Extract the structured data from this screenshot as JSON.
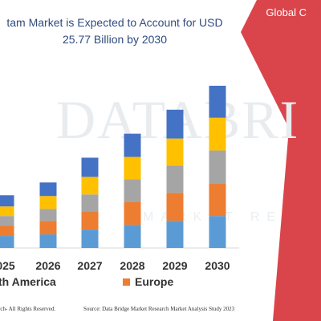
{
  "title": {
    "line1": "tam Market is Expected to Account for USD",
    "line2": "25.77 Billion by 2030"
  },
  "region_tag": "Global C",
  "watermark": {
    "main": "DATABRI",
    "sub": "MARKET RE"
  },
  "colors": {
    "band": "#d9454b",
    "series": [
      "#5b9bd5",
      "#ed7d31",
      "#a5a5a5",
      "#ffc000",
      "#4472c4"
    ],
    "grid": "#d9d9d9"
  },
  "legend": [
    {
      "label": "th America",
      "color": "#5b9bd5"
    },
    {
      "label": "Europe",
      "color": "#ed7d31"
    }
  ],
  "footer": {
    "left": "rch- All Rights Reserved.",
    "right": "Source: Data Bridge Market Research Market Analysis Study 2023"
  },
  "chart_data": {
    "type": "bar",
    "stacked": true,
    "categories": [
      "025",
      "2026",
      "2027",
      "2028",
      "2029",
      "2030"
    ],
    "series": [
      {
        "name": "th America",
        "values": [
          15,
          17,
          23,
          29,
          34,
          40
        ]
      },
      {
        "name": "Europe",
        "values": [
          13,
          17,
          23,
          29,
          35,
          41
        ]
      },
      {
        "values": [
          12,
          15,
          21,
          28,
          34,
          41
        ]
      },
      {
        "values": [
          12,
          16,
          22,
          28,
          34,
          41
        ]
      },
      {
        "values": [
          14,
          17,
          24,
          29,
          36,
          40
        ]
      }
    ],
    "ylim": [
      0,
      230
    ],
    "grid": false,
    "legend_position": "bottom"
  }
}
